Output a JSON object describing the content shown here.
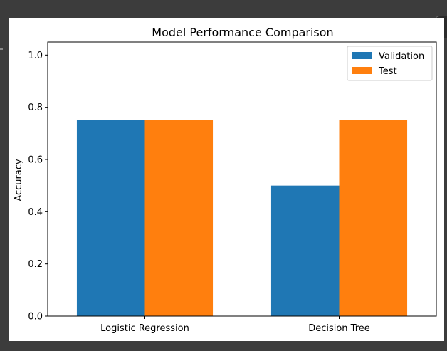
{
  "chart_data": {
    "type": "bar",
    "title": "Model Performance Comparison",
    "xlabel": "",
    "ylabel": "Accuracy",
    "categories": [
      "Logistic Regression",
      "Decision Tree"
    ],
    "series": [
      {
        "name": "Validation",
        "values": [
          0.75,
          0.5
        ],
        "color": "#1f77b4"
      },
      {
        "name": "Test",
        "values": [
          0.75,
          0.75
        ],
        "color": "#ff7f0e"
      }
    ],
    "ylim": [
      0,
      1.05
    ],
    "yticks": [
      "0.0",
      "0.2",
      "0.4",
      "0.6",
      "0.8",
      "1.0"
    ],
    "grid": false,
    "legend_position": "top-right"
  },
  "ui": {
    "collapse_icon": "chevron-up-icon"
  }
}
